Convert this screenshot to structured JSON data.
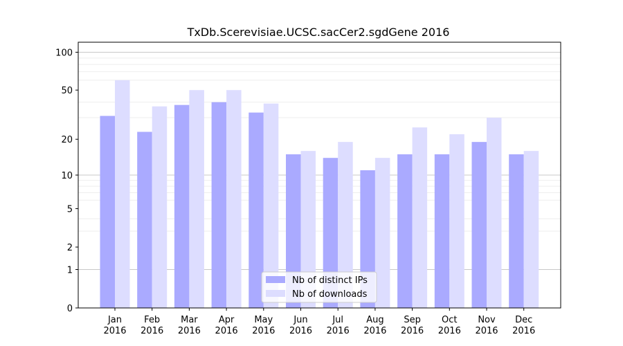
{
  "chart_data": {
    "type": "bar",
    "title": "TxDb.Scerevisiae.UCSC.sacCer2.sgdGene 2016",
    "xlabel": "",
    "ylabel": "",
    "yscale": "log(1+y)",
    "ylim": [
      0,
      120
    ],
    "yticks": [
      0,
      1,
      2,
      5,
      10,
      20,
      50,
      100
    ],
    "ytick_labels": [
      "0",
      "1",
      "2",
      "5",
      "10",
      "20",
      "50",
      "100"
    ],
    "grid": true,
    "categories": [
      "Jan\n2016",
      "Feb\n2016",
      "Mar\n2016",
      "Apr\n2016",
      "May\n2016",
      "Jun\n2016",
      "Jul\n2016",
      "Aug\n2016",
      "Sep\n2016",
      "Oct\n2016",
      "Nov\n2016",
      "Dec\n2016"
    ],
    "series": [
      {
        "name": "Nb of distinct IPs",
        "color": "#aaaaff",
        "values": [
          31,
          23,
          38,
          40,
          33,
          15,
          14,
          11,
          15,
          15,
          19,
          15
        ]
      },
      {
        "name": "Nb of downloads",
        "color": "#ddddff",
        "values": [
          60,
          37,
          50,
          50,
          39,
          16,
          19,
          14,
          25,
          22,
          30,
          16
        ]
      }
    ],
    "legend_position": "bottom-center"
  }
}
